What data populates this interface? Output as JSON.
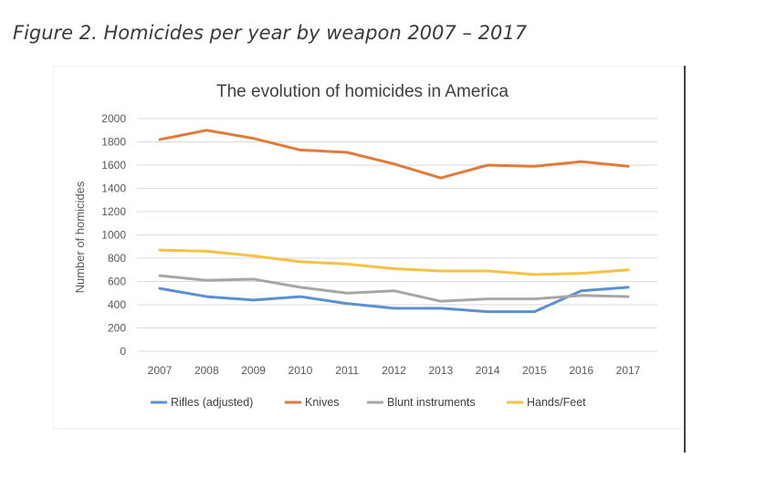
{
  "figure": {
    "caption": "Figure 2. Homicides per year by weapon 2007 – 2017"
  },
  "chart_data": {
    "type": "line",
    "title": "The evolution of homicides in America",
    "xlabel": "",
    "ylabel": "Number of homicides",
    "categories": [
      "2007",
      "2008",
      "2009",
      "2010",
      "2011",
      "2012",
      "2013",
      "2014",
      "2015",
      "2016",
      "2017"
    ],
    "ylim": [
      0,
      2000
    ],
    "yticks": [
      "0",
      "200",
      "400",
      "600",
      "800",
      "1000",
      "1200",
      "1400",
      "1600",
      "1800",
      "2000"
    ],
    "grid": true,
    "legend_position": "bottom",
    "series": [
      {
        "name": "Rifles (adjusted)",
        "color": "#5b8fd0",
        "values": [
          540,
          470,
          440,
          470,
          410,
          370,
          370,
          340,
          340,
          520,
          550
        ]
      },
      {
        "name": "Knives",
        "color": "#e07b39",
        "values": [
          1820,
          1900,
          1830,
          1730,
          1710,
          1610,
          1490,
          1600,
          1590,
          1630,
          1590
        ]
      },
      {
        "name": "Blunt instruments",
        "color": "#a6a6a6",
        "values": [
          650,
          610,
          620,
          550,
          500,
          520,
          430,
          450,
          450,
          480,
          470
        ]
      },
      {
        "name": "Hands/Feet",
        "color": "#f5c242",
        "values": [
          870,
          860,
          820,
          770,
          750,
          710,
          690,
          690,
          660,
          670,
          700
        ]
      }
    ]
  }
}
